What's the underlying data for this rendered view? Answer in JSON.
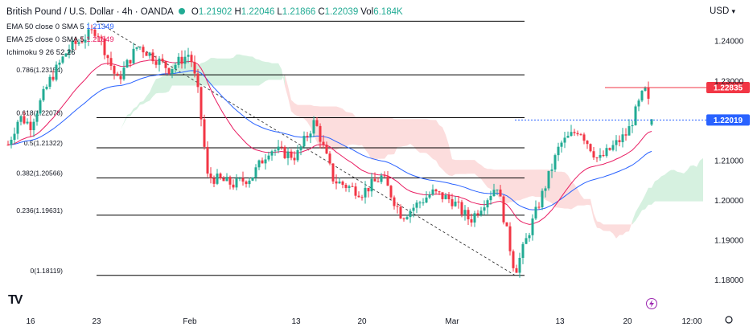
{
  "header": {
    "symbol": "British Pound / U.S. Dollar · 4h · OANDA",
    "ohlc": [
      {
        "k": "O",
        "v": "1.21902"
      },
      {
        "k": "H",
        "v": "1.22046"
      },
      {
        "k": "L",
        "v": "1.21866"
      },
      {
        "k": "C",
        "v": "1.22039"
      },
      {
        "k": "Vol",
        "v": "6.184K"
      }
    ],
    "status_color": "#22ab94"
  },
  "indicators": [
    {
      "label": "EMA 50 close 0 SMA 5",
      "value": "1.21349",
      "value2": ""
    },
    {
      "label": "EMA 25 close 0 SMA 5",
      "value": "",
      "value2": "1.21849"
    },
    {
      "label": "Ichimoku 9 26 52 26",
      "value": "",
      "value2": ""
    }
  ],
  "currency": "USD",
  "currency_icon": "chevron-down-icon",
  "logo": "TV",
  "colors": {
    "up": "#22ab94",
    "down": "#f23645",
    "ema50": "#2962ff",
    "ema25": "#e91e63",
    "cloud_bull": "#c8ecd5",
    "cloud_bear": "#fbd2d2",
    "current_price": "#2962ff",
    "resistance": "#f23645"
  },
  "chart_data": {
    "type": "candlestick",
    "title": "British Pound / U.S. Dollar · 4h · OANDA",
    "y_ticks": [
      "1.24000",
      "1.23000",
      "1.21000",
      "1.20000",
      "1.19000",
      "1.18000"
    ],
    "x_ticks": [
      "16",
      "23",
      "Feb",
      "13",
      "20",
      "Mar",
      "13",
      "20",
      "12:00"
    ],
    "ylim": [
      1.1755,
      1.2475
    ],
    "price_labels": [
      {
        "value": 1.22835,
        "label": "1.22835",
        "kind": "resistance"
      },
      {
        "value": 1.22019,
        "label": "1.22019",
        "kind": "current"
      }
    ],
    "fibonacci": [
      {
        "ratio": "0.786",
        "value": 1.23154,
        "label": "0.786(1.23154)"
      },
      {
        "ratio": "0.618",
        "value": 1.22078,
        "label": "0.618(1.22078)"
      },
      {
        "ratio": "0.5",
        "value": 1.21322,
        "label": "0.5(1.21322)"
      },
      {
        "ratio": "0.382",
        "value": 1.20566,
        "label": "0.382(1.20566)"
      },
      {
        "ratio": "0.236",
        "value": 1.19631,
        "label": "0.236(1.19631)"
      },
      {
        "ratio": "0",
        "value": 1.18119,
        "label": "0(1.18119)"
      }
    ],
    "fib_top": 1.245,
    "trendline": {
      "from": {
        "date": "Jan 23",
        "price": 1.245
      },
      "to": {
        "date": "Mar 8",
        "price": 1.1812
      }
    },
    "series_points": [
      {
        "d": "Jan 12",
        "p": 1.214
      },
      {
        "d": "Jan 14",
        "p": 1.221
      },
      {
        "d": "Jan 16",
        "p": 1.219
      },
      {
        "d": "Jan 18",
        "p": 1.23
      },
      {
        "d": "Jan 20",
        "p": 1.238
      },
      {
        "d": "Jan 23",
        "p": 1.243
      },
      {
        "d": "Jan 25",
        "p": 1.23
      },
      {
        "d": "Jan 27",
        "p": 1.239
      },
      {
        "d": "Jan 30",
        "p": 1.233
      },
      {
        "d": "Feb 1",
        "p": 1.237
      },
      {
        "d": "Feb 2",
        "p": 1.226
      },
      {
        "d": "Feb 3",
        "p": 1.206
      },
      {
        "d": "Feb 6",
        "p": 1.204
      },
      {
        "d": "Feb 8",
        "p": 1.206
      },
      {
        "d": "Feb 10",
        "p": 1.213
      },
      {
        "d": "Feb 13",
        "p": 1.211
      },
      {
        "d": "Feb 15",
        "p": 1.22
      },
      {
        "d": "Feb 17",
        "p": 1.205
      },
      {
        "d": "Feb 20",
        "p": 1.202
      },
      {
        "d": "Feb 22",
        "p": 1.206
      },
      {
        "d": "Feb 24",
        "p": 1.196
      },
      {
        "d": "Feb 27",
        "p": 1.202
      },
      {
        "d": "Mar 1",
        "p": 1.2
      },
      {
        "d": "Mar 3",
        "p": 1.195
      },
      {
        "d": "Mar 6",
        "p": 1.204
      },
      {
        "d": "Mar 8",
        "p": 1.182
      },
      {
        "d": "Mar 10",
        "p": 1.195
      },
      {
        "d": "Mar 13",
        "p": 1.214
      },
      {
        "d": "Mar 15",
        "p": 1.218
      },
      {
        "d": "Mar 17",
        "p": 1.21
      },
      {
        "d": "Mar 20",
        "p": 1.217
      },
      {
        "d": "Mar 22",
        "p": 1.228
      },
      {
        "d": "Mar 23",
        "p": 1.22
      }
    ]
  }
}
